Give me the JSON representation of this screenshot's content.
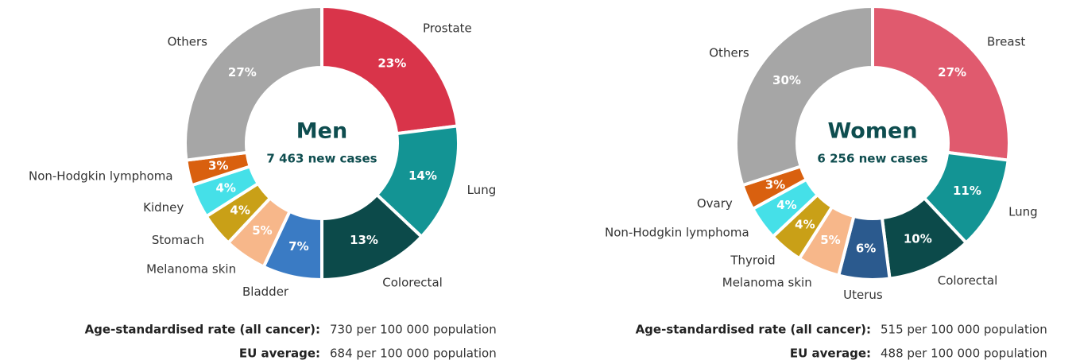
{
  "chart_data": [
    {
      "type": "pie",
      "donut": true,
      "title": "Men",
      "subtitle": "7 463 new cases",
      "categories": [
        "Prostate",
        "Lung",
        "Colorectal",
        "Bladder",
        "Melanoma skin",
        "Stomach",
        "Kidney",
        "Non-Hodgkin lymphoma",
        "Others"
      ],
      "values": [
        23,
        14,
        13,
        7,
        5,
        4,
        4,
        3,
        27
      ],
      "value_labels": [
        "23%",
        "14%",
        "13%",
        "7%",
        "5%",
        "4%",
        "4%",
        "3%",
        "27%"
      ],
      "colors": [
        "#d9344a",
        "#139494",
        "#0c4a4a",
        "#3a7bc4",
        "#f7b78a",
        "#c9a017",
        "#45e0e8",
        "#d9600f",
        "#a6a6a6"
      ],
      "rate_label": "Age-standardised rate (all cancer):",
      "rate_text": "730 per 100 000 population",
      "eu_label": "EU average:",
      "eu_text": "684 per 100 000 population"
    },
    {
      "type": "pie",
      "donut": true,
      "title": "Women",
      "subtitle": "6 256 new cases",
      "categories": [
        "Breast",
        "Lung",
        "Colorectal",
        "Uterus",
        "Melanoma skin",
        "Thyroid",
        "Non-Hodgkin lymphoma",
        "Ovary",
        "Others"
      ],
      "values": [
        27,
        11,
        10,
        6,
        5,
        4,
        4,
        3,
        30
      ],
      "value_labels": [
        "27%",
        "11%",
        "10%",
        "6%",
        "5%",
        "4%",
        "4%",
        "3%",
        "30%"
      ],
      "colors": [
        "#e05a6e",
        "#139494",
        "#0c4a4a",
        "#2b5a8e",
        "#f7b78a",
        "#c9a017",
        "#45e0e8",
        "#d9600f",
        "#a6a6a6"
      ],
      "rate_label": "Age-standardised rate (all cancer):",
      "rate_text": "515 per 100 000 population",
      "eu_label": "EU average:",
      "eu_text": "488 per 100 000 population"
    }
  ]
}
